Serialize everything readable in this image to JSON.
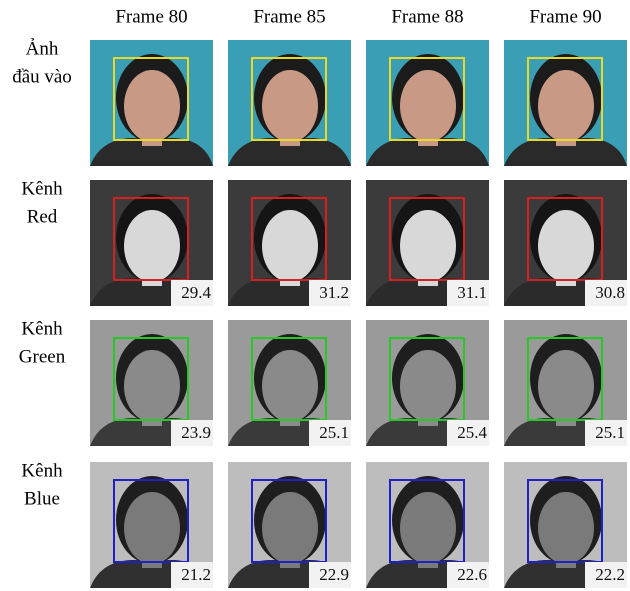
{
  "header": {
    "columns": [
      "Frame 80",
      "Frame 85",
      "Frame 88",
      "Frame 90"
    ]
  },
  "rows": [
    {
      "label": [
        "Ảnh",
        "đầu vào"
      ]
    },
    {
      "label": [
        "Kênh",
        "Red"
      ],
      "values": [
        29.4,
        31.2,
        31.1,
        30.8
      ]
    },
    {
      "label": [
        "Kênh",
        "Green"
      ],
      "values": [
        23.9,
        25.1,
        25.4,
        25.1
      ]
    },
    {
      "label": [
        "Kênh",
        "Blue"
      ],
      "values": [
        21.2,
        22.9,
        22.6,
        22.2
      ]
    }
  ]
}
